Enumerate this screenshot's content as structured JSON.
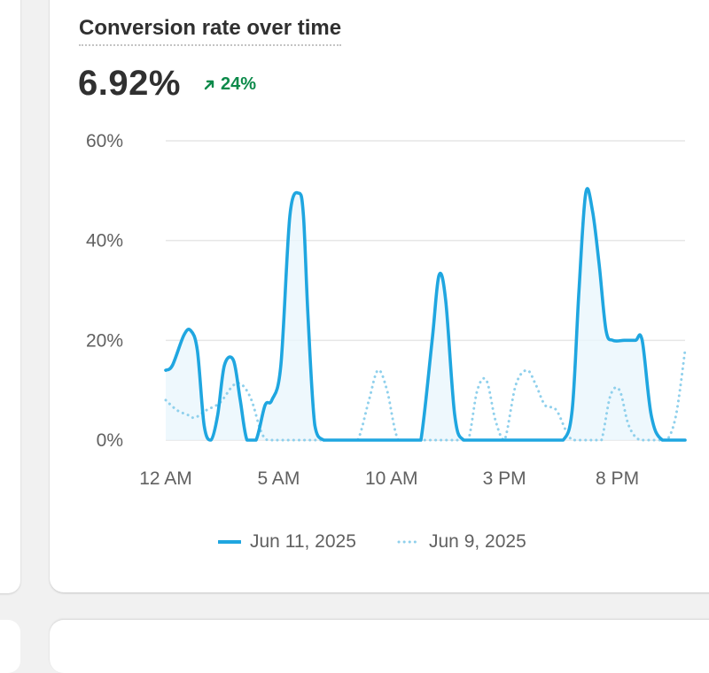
{
  "card": {
    "title": "Conversion rate over time",
    "metric": "6.92%",
    "change": "24%",
    "change_direction": "up",
    "change_icon": "arrow-up-right-icon"
  },
  "colors": {
    "primary_series": "#1fa6e0",
    "comparison_series": "#8fd0ec",
    "area_fill": "#eaf6fc",
    "grid": "#e6e6e6",
    "positive": "#0c8a4a",
    "text": "#303030",
    "axis_text": "#616161"
  },
  "chart_data": {
    "type": "line",
    "title": "Conversion rate over time",
    "xlabel": "",
    "ylabel": "",
    "ylim": [
      0,
      60
    ],
    "y_ticks": [
      0,
      20,
      40,
      60
    ],
    "y_tick_labels": [
      "0%",
      "20%",
      "40%",
      "60%"
    ],
    "x_range": [
      0,
      23
    ],
    "x_ticks": [
      0,
      5,
      10,
      15,
      20
    ],
    "x_tick_labels": [
      "12 AM",
      "5 AM",
      "10 AM",
      "3 PM",
      "8 PM"
    ],
    "grid": true,
    "legend": "bottom-center",
    "series": [
      {
        "name": "Jun 11, 2025",
        "style": "solid",
        "x": [
          0,
          0.3,
          0.8,
          1.1,
          1.4,
          1.7,
          2.0,
          2.3,
          2.6,
          3.0,
          3.3,
          3.6,
          4.0,
          4.4,
          4.7,
          5.1,
          5.5,
          5.9,
          6.1,
          6.3,
          6.6,
          7.0,
          7.5,
          8.0,
          9.0,
          10.0,
          11.0,
          11.3,
          11.8,
          12.1,
          12.4,
          12.8,
          13.2,
          14.0,
          15.0,
          16.0,
          17.0,
          17.6,
          18.0,
          18.3,
          18.6,
          18.9,
          19.2,
          19.5,
          19.8,
          20.3,
          20.8,
          21.1,
          21.5,
          22.0,
          23.0
        ],
        "values": [
          14,
          15,
          21,
          22,
          18,
          3,
          0,
          5,
          15,
          16,
          8,
          0,
          0,
          7,
          8,
          15,
          45,
          49.5,
          45,
          25,
          3,
          0,
          0,
          0,
          0,
          0,
          0,
          0,
          20,
          33,
          28,
          5,
          0,
          0,
          0,
          0,
          0,
          0,
          6,
          30,
          49.5,
          46,
          35,
          22,
          20,
          20,
          20,
          20,
          5,
          0,
          0
        ]
      },
      {
        "name": "Jun 9, 2025",
        "style": "dotted",
        "x": [
          0,
          0.5,
          1.0,
          1.3,
          1.8,
          2.4,
          3.0,
          3.4,
          3.8,
          4.2,
          4.5,
          5.0,
          6.0,
          7.0,
          8.0,
          8.5,
          9.0,
          9.4,
          9.8,
          10.3,
          11.0,
          12.0,
          13.0,
          13.4,
          13.8,
          14.2,
          14.6,
          15.0,
          15.5,
          16.0,
          16.4,
          16.8,
          17.3,
          18.0,
          19.0,
          19.3,
          19.7,
          20.1,
          20.5,
          21.0,
          21.8,
          22.2,
          22.6,
          23.0
        ],
        "values": [
          8,
          6,
          5,
          4.5,
          6,
          7.5,
          11,
          11,
          8,
          2,
          0,
          0,
          0,
          0,
          0,
          0,
          8,
          14,
          10,
          0,
          0,
          0,
          0,
          0,
          10,
          12,
          4,
          0,
          11,
          14,
          11,
          7,
          6,
          0,
          0,
          0,
          9,
          10,
          3,
          0,
          0,
          0,
          5,
          18
        ]
      }
    ]
  }
}
